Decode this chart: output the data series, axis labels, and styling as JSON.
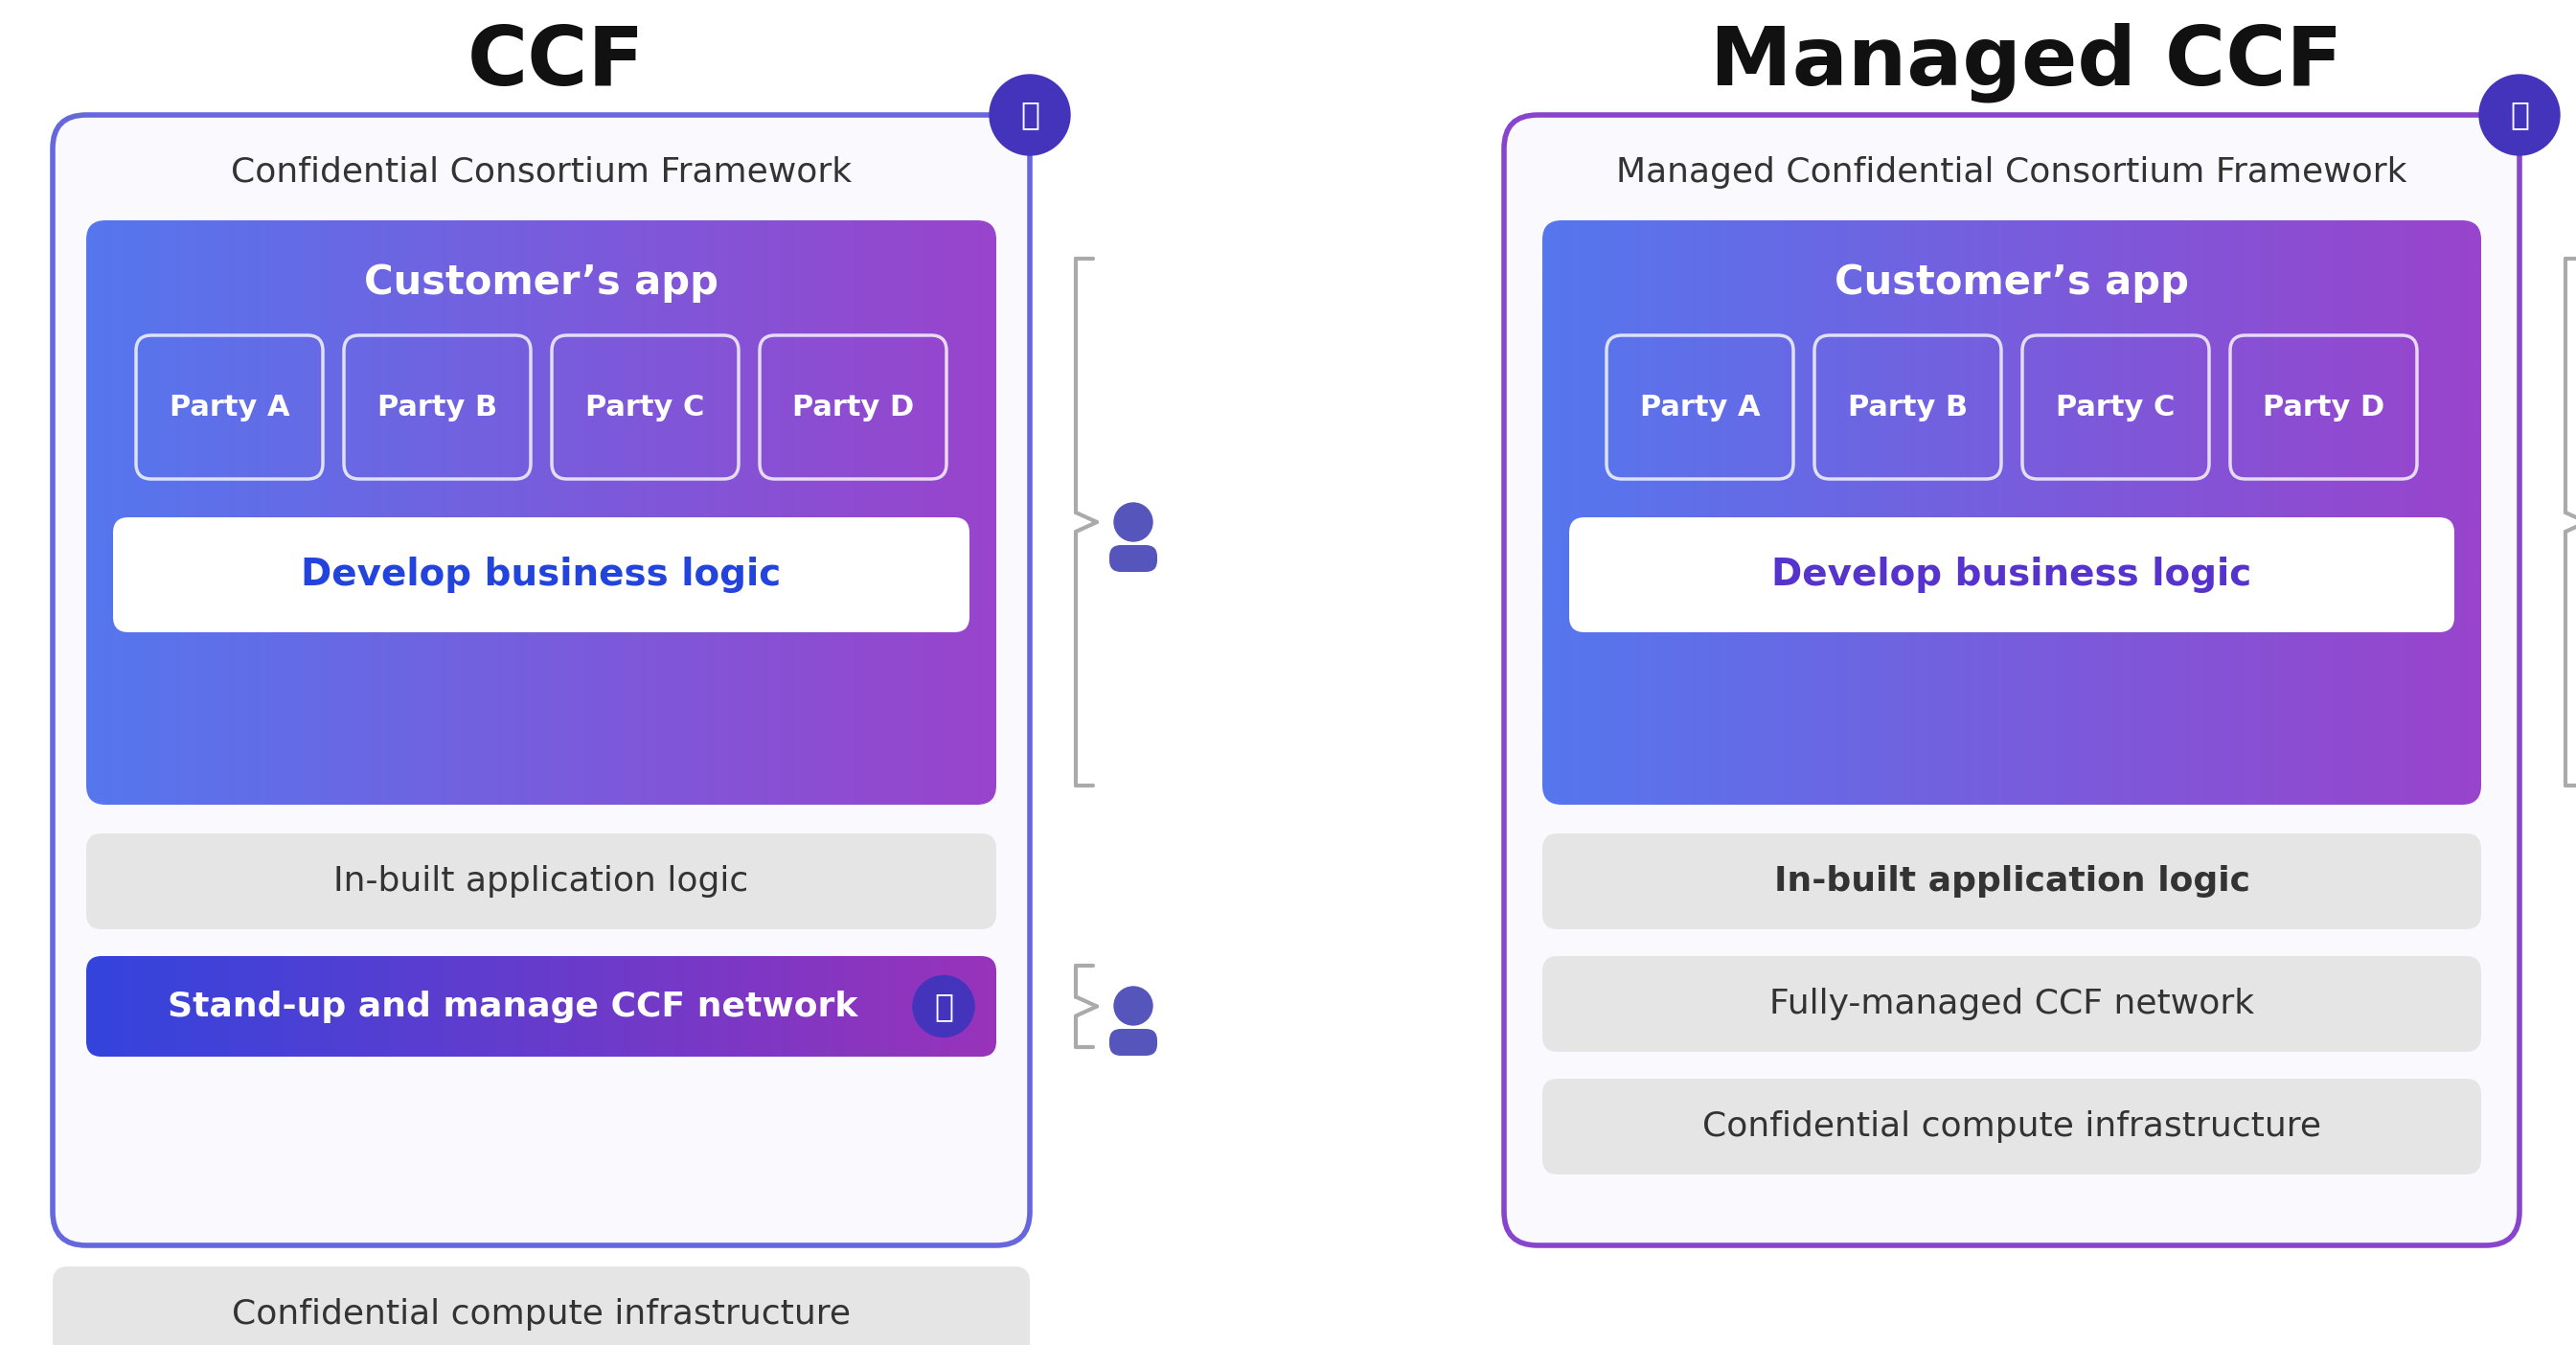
{
  "title_left": "CCF",
  "title_right": "Managed CCF",
  "bg_color": "#ffffff",
  "left_label": "Confidential Consortium Framework",
  "right_label": "Managed Confidential Consortium Framework",
  "customers_app_label": "Customer’s app",
  "parties": [
    "Party A",
    "Party B",
    "Party C",
    "Party D"
  ],
  "develop_label": "Develop business logic",
  "develop_color_left": "#2244dd",
  "develop_color_right": "#5533cc",
  "gradient_left_color": "#5577ee",
  "gradient_right_color": "#9944cc",
  "ccf_network_label": "Stand-up and manage CCF network",
  "ccf_network_grad_left": "#3344dd",
  "ccf_network_grad_right": "#9933bb",
  "lock_color": "#4433bb",
  "person_color": "#5555bb",
  "bracket_color": "#aaaaaa",
  "gray_box_color": "#e5e5e5",
  "outer_border_left": "#6666dd",
  "outer_border_right": "#8844cc",
  "outer_face": "#fafafe"
}
